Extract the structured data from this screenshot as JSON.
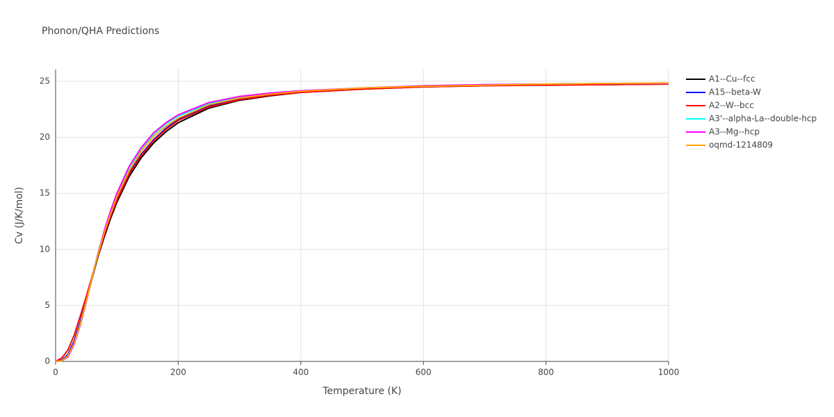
{
  "chart_data": {
    "type": "line",
    "title": "Phonon/QHA Predictions",
    "x_label": "Temperature (K)",
    "y_label": "Cv (J/K/mol)",
    "x": [
      0,
      10,
      20,
      30,
      40,
      50,
      60,
      70,
      80,
      90,
      100,
      120,
      140,
      160,
      180,
      200,
      250,
      300,
      350,
      400,
      500,
      600,
      700,
      800,
      900,
      1000
    ],
    "series": [
      {
        "name": "A1--Cu--fcc",
        "color": "#000000",
        "values": [
          0,
          0.1,
          0.6,
          1.7,
          3.4,
          5.4,
          7.5,
          9.5,
          11.2,
          12.8,
          14.2,
          16.5,
          18.2,
          19.5,
          20.5,
          21.3,
          22.6,
          23.3,
          23.7,
          24.0,
          24.3,
          24.5,
          24.6,
          24.7,
          24.7,
          24.75
        ]
      },
      {
        "name": "A15--beta-W",
        "color": "#0000ff",
        "values": [
          0,
          0.1,
          0.6,
          1.8,
          3.5,
          5.5,
          7.6,
          9.6,
          11.4,
          13.0,
          14.5,
          16.8,
          18.5,
          19.8,
          20.8,
          21.6,
          22.8,
          23.4,
          23.8,
          24.05,
          24.35,
          24.55,
          24.65,
          24.7,
          24.75,
          24.78
        ]
      },
      {
        "name": "A2--W--bcc",
        "color": "#ff0000",
        "values": [
          0,
          0.3,
          1.0,
          2.3,
          4.0,
          5.8,
          7.7,
          9.6,
          11.4,
          13.0,
          14.4,
          16.7,
          18.4,
          19.7,
          20.7,
          21.5,
          22.7,
          23.35,
          23.75,
          24.0,
          24.3,
          24.5,
          24.6,
          24.65,
          24.7,
          24.75
        ]
      },
      {
        "name": "A3'--alpha-La--double-hcp",
        "color": "#00ffff",
        "values": [
          0,
          0.05,
          0.4,
          1.5,
          3.2,
          5.3,
          7.6,
          9.8,
          11.7,
          13.4,
          14.9,
          17.3,
          19.0,
          20.3,
          21.2,
          21.9,
          23.0,
          23.6,
          23.95,
          24.15,
          24.4,
          24.6,
          24.7,
          24.75,
          24.8,
          24.8
        ]
      },
      {
        "name": "A3--Mg--hcp",
        "color": "#ff00ff",
        "values": [
          0,
          0.05,
          0.4,
          1.5,
          3.2,
          5.3,
          7.6,
          9.8,
          11.8,
          13.5,
          15.0,
          17.4,
          19.1,
          20.4,
          21.3,
          22.0,
          23.1,
          23.65,
          23.95,
          24.15,
          24.4,
          24.6,
          24.7,
          24.75,
          24.8,
          24.8
        ]
      },
      {
        "name": "oqmd-1214809",
        "color": "#ffa500",
        "values": [
          0,
          0.05,
          0.5,
          1.6,
          3.3,
          5.4,
          7.6,
          9.7,
          11.6,
          13.2,
          14.7,
          17.0,
          18.8,
          20.1,
          21.0,
          21.7,
          22.9,
          23.5,
          23.85,
          24.1,
          24.4,
          24.55,
          24.65,
          24.75,
          24.8,
          24.85
        ]
      }
    ],
    "xlim": [
      0,
      1000
    ],
    "xticks": [
      0,
      200,
      400,
      600,
      800,
      1000
    ],
    "ylim": [
      0,
      26.05
    ],
    "yticks": [
      0,
      5,
      10,
      15,
      20,
      25
    ],
    "grid": true
  }
}
